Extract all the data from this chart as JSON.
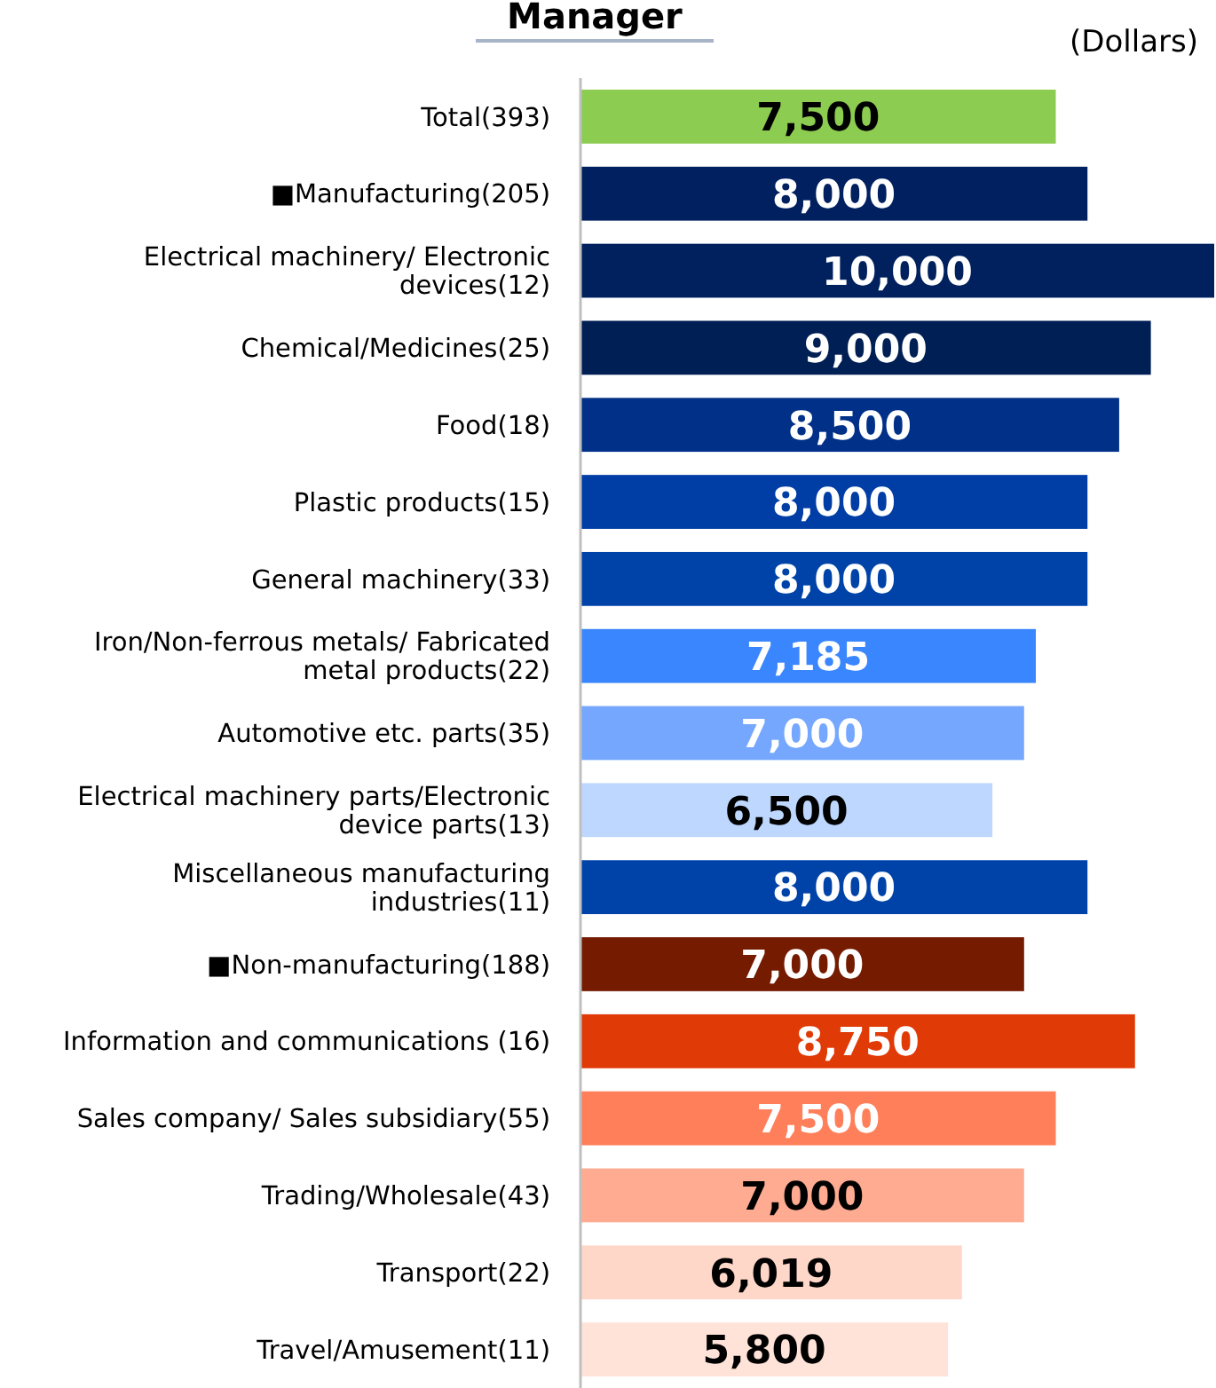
{
  "chart_data": {
    "type": "bar",
    "orientation": "horizontal",
    "title": "Manager",
    "annotations": [
      "(Dollars)"
    ],
    "value_labels": [
      "7,500",
      "8,000",
      "10,000",
      "9,000",
      "8,500",
      "8,000",
      "8,000",
      "7,185",
      "7,000",
      "6,500",
      "8,000",
      "7,000",
      "8,750",
      "7,500",
      "7,000",
      "6,019",
      "5,800"
    ],
    "categories": [
      "Total(393)",
      "■Manufacturing(205)",
      "Electrical machinery/ Electronic devices(12)",
      "Chemical/Medicines(25)",
      "Food(18)",
      "Plastic products(15)",
      "General machinery(33)",
      "Iron/Non-ferrous metals/ Fabricated metal products(22)",
      "Automotive etc. parts(35)",
      "Electrical machinery parts/Electronic device parts(13)",
      "Miscellaneous manufacturing industries(11)",
      "■Non-manufacturing(188)",
      "Information and communications (16)",
      "Sales company/ Sales subsidiary(55)",
      "Trading/Wholesale(43)",
      "Transport(22)",
      "Travel/Amusement(11)"
    ],
    "values": [
      7500,
      8000,
      10000,
      9000,
      8500,
      8000,
      8000,
      7185,
      7000,
      6500,
      8000,
      7000,
      8750,
      7500,
      7000,
      6019,
      5800
    ],
    "colors": [
      "#8ccc50",
      "#002060",
      "#00215e",
      "#001f55",
      "#003087",
      "#003da5",
      "#0043a8",
      "#3a86ff",
      "#75a7ff",
      "#bdd7ff",
      "#0043a8",
      "#741b00",
      "#e03a07",
      "#ff7f5a",
      "#ffab91",
      "#ffd7c8",
      "#ffe3d9"
    ]
  }
}
